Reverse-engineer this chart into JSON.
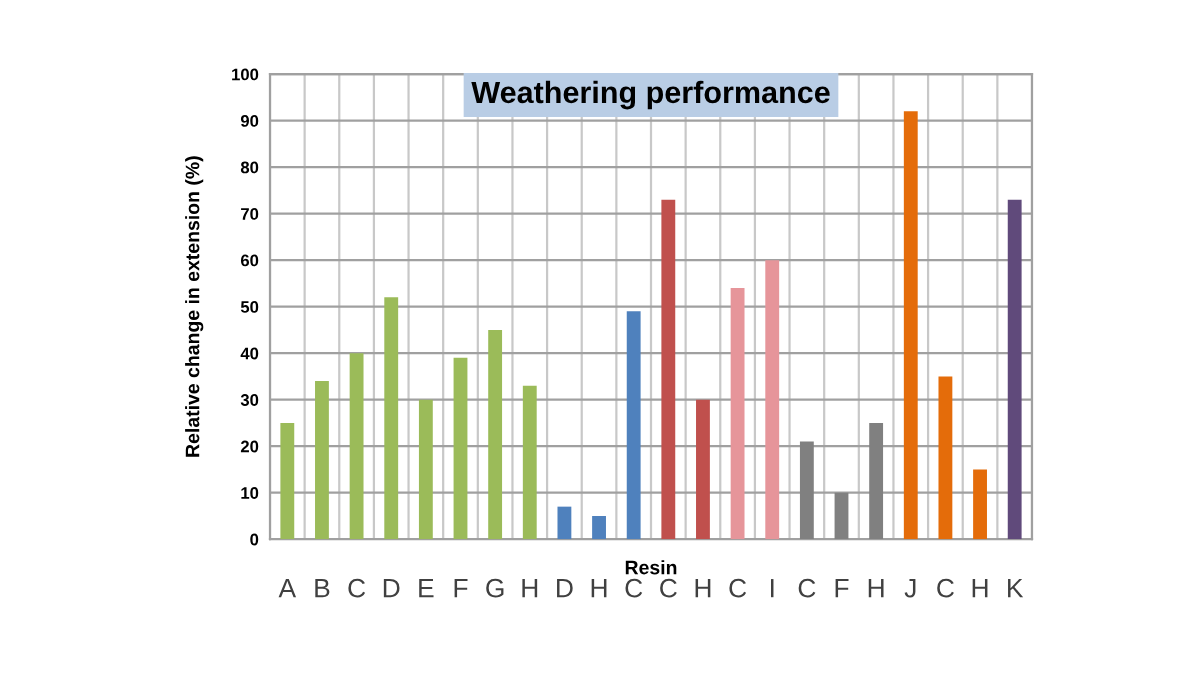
{
  "chart_data": {
    "type": "bar",
    "title": "Weathering performance",
    "xlabel": "Resin",
    "ylabel": "Relative change in extension (%)",
    "categories": [
      "A",
      "B",
      "C",
      "D",
      "E",
      "F",
      "G",
      "H",
      "D",
      "H",
      "C",
      "C",
      "H",
      "C",
      "I",
      "C",
      "F",
      "H",
      "J",
      "C",
      "H",
      "K"
    ],
    "values": [
      25,
      34,
      40,
      52,
      30,
      39,
      45,
      33,
      7,
      5,
      49,
      73,
      30,
      54,
      60,
      21,
      10,
      25,
      92,
      35,
      15,
      73
    ],
    "colors": [
      "#9bbb59",
      "#9bbb59",
      "#9bbb59",
      "#9bbb59",
      "#9bbb59",
      "#9bbb59",
      "#9bbb59",
      "#9bbb59",
      "#4f81bd",
      "#4f81bd",
      "#4f81bd",
      "#c0504d",
      "#c0504d",
      "#e6959a",
      "#e6959a",
      "#808080",
      "#808080",
      "#808080",
      "#e46c0a",
      "#e46c0a",
      "#e46c0a",
      "#604a7b"
    ],
    "ylim": [
      0,
      100
    ],
    "yticks": [
      0,
      10,
      20,
      30,
      40,
      50,
      60,
      70,
      80,
      90,
      100
    ],
    "grid": true
  }
}
